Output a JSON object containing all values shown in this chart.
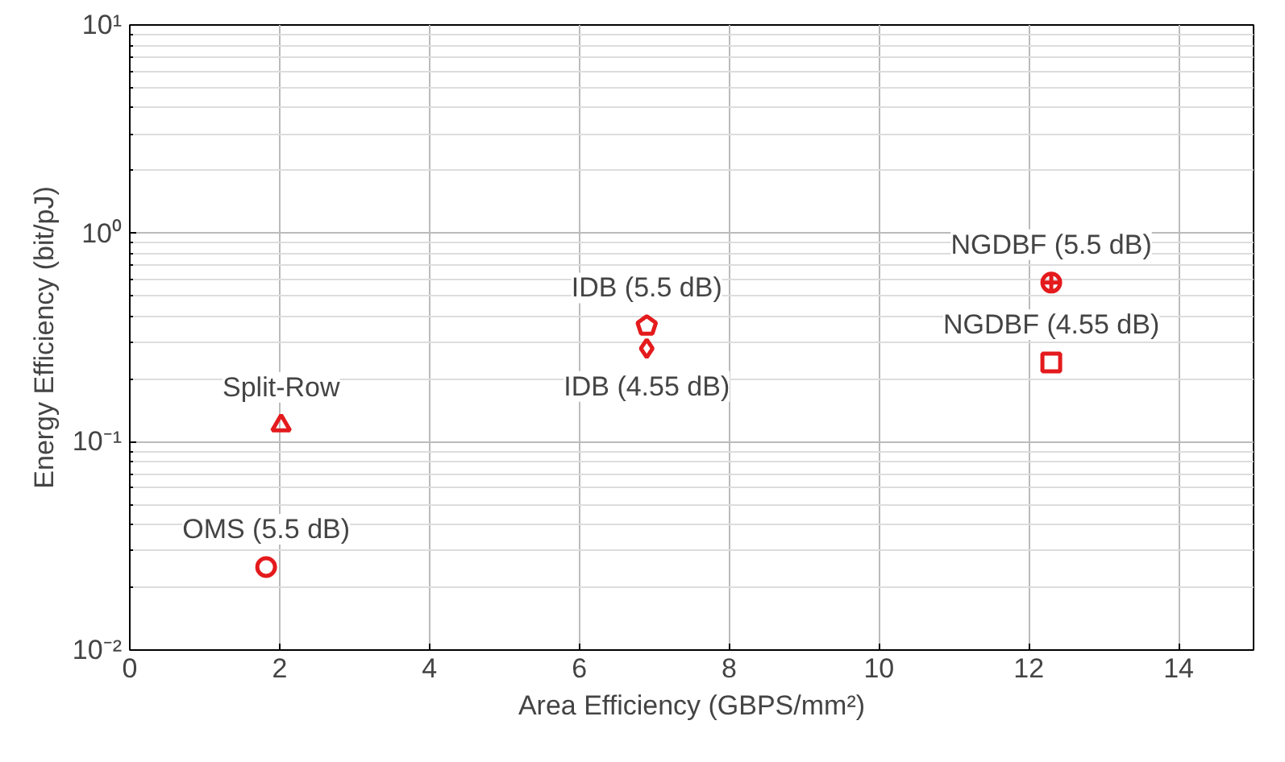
{
  "chart_data": {
    "type": "scatter",
    "xlabel": "Area Efficiency (GBPS/mm²)",
    "ylabel": "Energy Efficiency (bit/pJ)",
    "log": "y",
    "grid": true,
    "xlim": [
      0,
      15
    ],
    "xticks": [
      0,
      2,
      4,
      6,
      8,
      10,
      12,
      14
    ],
    "ylim": [
      0.01,
      10
    ],
    "yticks": [
      {
        "value": 0.01,
        "label": "10⁻²"
      },
      {
        "value": 0.1,
        "label": "10⁻¹"
      },
      {
        "value": 1,
        "label": "10⁰"
      },
      {
        "value": 10,
        "label": "10¹"
      }
    ],
    "series": [
      {
        "name": "OMS (5.5 dB)",
        "color": "#e41a1c",
        "marker": "circle",
        "x": [
          1.82
        ],
        "values": [
          0.025
        ]
      },
      {
        "name": "Split-Row",
        "color": "#e41a1c",
        "marker": "triangle",
        "x": [
          2.02
        ],
        "values": [
          0.12
        ]
      },
      {
        "name": "IDB (5.5 dB)",
        "color": "#e41a1c",
        "x": [
          6.9
        ],
        "values": [
          0.36
        ]
      },
      {
        "name": "IDB (4.55 dB)",
        "color": "#e41a1c",
        "marker": "diamond",
        "x": [
          6.9
        ],
        "values": [
          0.28
        ]
      },
      {
        "name": "NGDBF (5.5 dB)",
        "color": "#e41a1c",
        "marker": "circle",
        "x": [
          12.3
        ],
        "values": [
          0.58
        ]
      },
      {
        "name": "NGDBF (4.55 dB)",
        "color": "#e41a1c",
        "marker": "square",
        "x": [
          12.3
        ],
        "values": [
          0.24
        ]
      }
    ]
  }
}
